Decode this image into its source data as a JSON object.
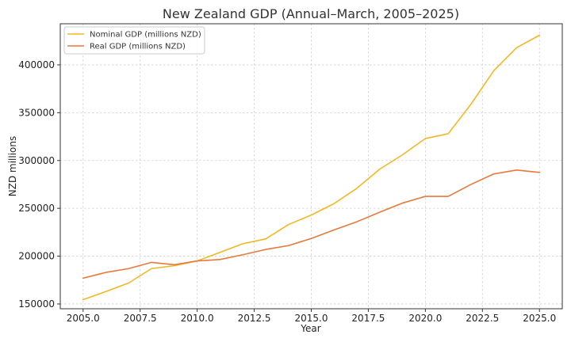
{
  "chart_data": {
    "type": "line",
    "title": "New Zealand GDP (Annual–March, 2005–2025)",
    "xlabel": "Year",
    "ylabel": "NZD millions",
    "xlim": [
      2004.0,
      2026.0
    ],
    "ylim": [
      145000,
      443000
    ],
    "xticks": [
      2005.0,
      2007.5,
      2010.0,
      2012.5,
      2015.0,
      2017.5,
      2020.0,
      2022.5,
      2025.0
    ],
    "xtick_labels": [
      "2005.0",
      "2007.5",
      "2010.0",
      "2012.5",
      "2015.0",
      "2017.5",
      "2020.0",
      "2022.5",
      "2025.0"
    ],
    "yticks": [
      150000,
      200000,
      250000,
      300000,
      350000,
      400000
    ],
    "ytick_labels": [
      "150000",
      "200000",
      "250000",
      "300000",
      "350000",
      "400000"
    ],
    "grid": true,
    "legend_position": "top-left",
    "x": [
      2005,
      2006,
      2007,
      2008,
      2009,
      2010,
      2011,
      2012,
      2013,
      2014,
      2015,
      2016,
      2017,
      2018,
      2019,
      2020,
      2021,
      2022,
      2023,
      2024,
      2025
    ],
    "series": [
      {
        "name": "Nominal GDP (millions NZD)",
        "color": "#f2b824",
        "values": [
          154500,
          163000,
          172000,
          187000,
          190000,
          195000,
          204000,
          213000,
          218000,
          233000,
          243000,
          255000,
          271000,
          291000,
          306000,
          323000,
          328000,
          359000,
          394000,
          418000,
          431000
        ]
      },
      {
        "name": "Real GDP (millions NZD)",
        "color": "#e8793a",
        "values": [
          177000,
          183000,
          187000,
          193500,
          191000,
          195000,
          196500,
          201500,
          207000,
          211000,
          218500,
          227500,
          236000,
          246000,
          255500,
          262500,
          262500,
          275000,
          286000,
          290000,
          287500
        ]
      }
    ]
  }
}
